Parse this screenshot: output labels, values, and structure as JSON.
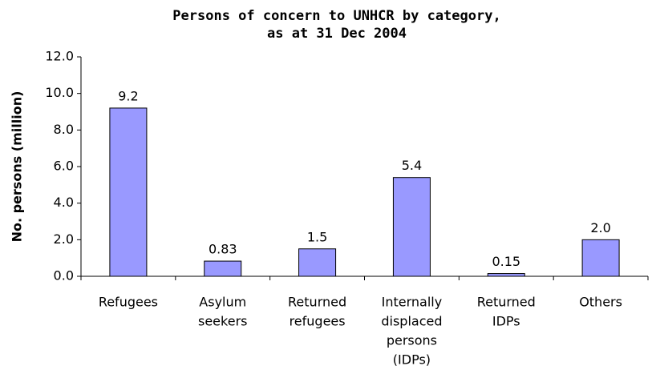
{
  "chart_data": {
    "type": "bar",
    "title": [
      "Persons of concern to UNHCR by category,",
      "as at 31 Dec 2004"
    ],
    "y_label": "No. persons (million)",
    "categories": [
      [
        "Refugees"
      ],
      [
        "Asylum",
        "seekers"
      ],
      [
        "Returned",
        "refugees"
      ],
      [
        "Internally",
        "displaced",
        "persons",
        "(IDPs)"
      ],
      [
        "Returned",
        "IDPs"
      ],
      [
        "Others"
      ]
    ],
    "values": [
      9.2,
      0.83,
      1.5,
      5.4,
      0.15,
      2.0
    ],
    "value_labels": [
      "9.2",
      "0.83",
      "1.5",
      "5.4",
      "0.15",
      "2.0"
    ],
    "color": "#9999ff",
    "ylim": [
      0,
      12
    ],
    "yticks": [
      {
        "value": 0,
        "label": "0.0"
      },
      {
        "value": 2,
        "label": "2.0"
      },
      {
        "value": 4,
        "label": "4.0"
      },
      {
        "value": 6,
        "label": "6.0"
      },
      {
        "value": 8,
        "label": "8.0"
      },
      {
        "value": 10,
        "label": "10.0"
      },
      {
        "value": 12,
        "label": "12.0"
      }
    ],
    "grid": false
  }
}
